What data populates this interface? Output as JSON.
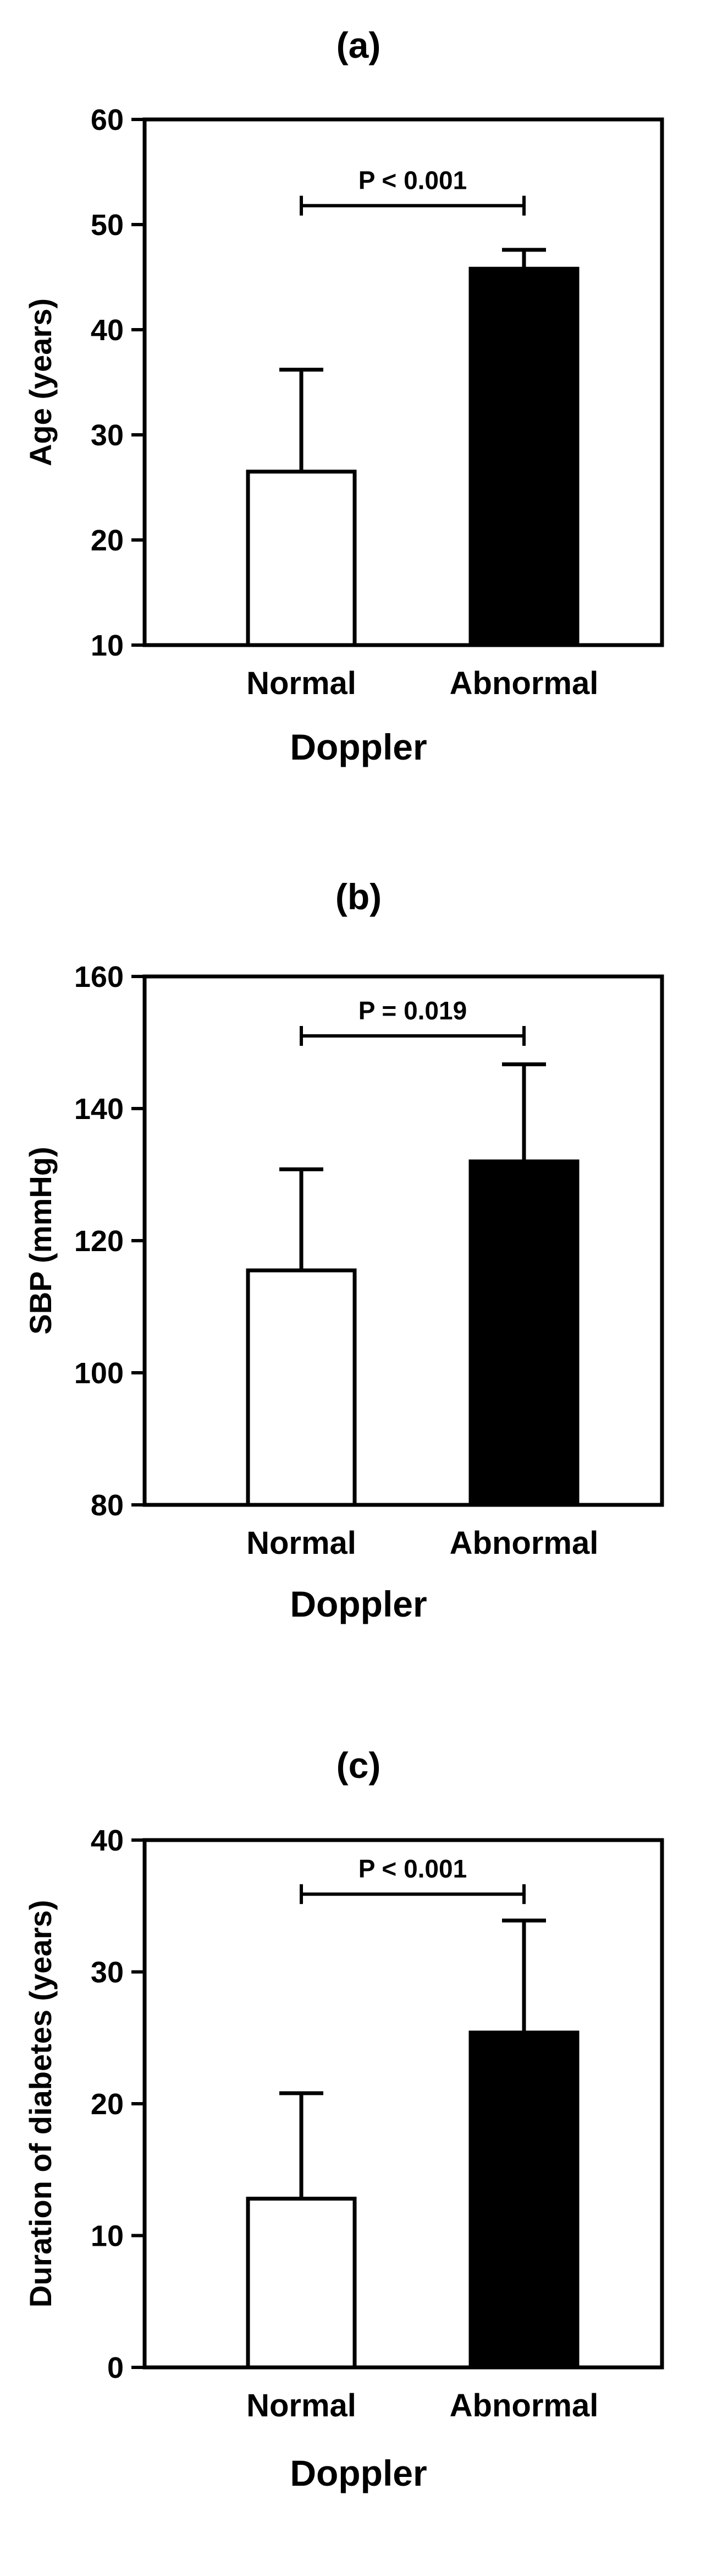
{
  "chart_data": [
    {
      "type": "bar",
      "panel_label": "(a)",
      "title": "(a)",
      "categories": [
        "Normal",
        "Abnormal"
      ],
      "values": [
        26.5,
        45.8
      ],
      "error_upper": [
        36.2,
        47.6
      ],
      "bar_colors": [
        "#ffffff",
        "#000000"
      ],
      "xlabel": "Doppler",
      "ylabel": "Age (years)",
      "ylim": [
        10,
        60
      ],
      "yticks": [
        10,
        20,
        30,
        40,
        50,
        60
      ],
      "ytick_labels": [
        "10",
        "20",
        "30",
        "40",
        "50",
        "60"
      ],
      "significance": {
        "label": "P < 0.001",
        "from": "Normal",
        "to": "Abnormal",
        "y": 51.8
      }
    },
    {
      "type": "bar",
      "panel_label": "(b)",
      "title": "(b)",
      "categories": [
        "Normal",
        "Abnormal"
      ],
      "values": [
        115.5,
        132
      ],
      "error_upper": [
        130.8,
        146.7
      ],
      "bar_colors": [
        "#ffffff",
        "#000000"
      ],
      "xlabel": "Doppler",
      "ylabel": "SBP (mmHg)",
      "ylim": [
        80,
        160
      ],
      "yticks": [
        80,
        100,
        120,
        140,
        160
      ],
      "ytick_labels": [
        "80",
        "100",
        "120",
        "140",
        "160"
      ],
      "significance": {
        "label": "P = 0.019",
        "from": "Normal",
        "to": "Abnormal",
        "y": 151
      }
    },
    {
      "type": "bar",
      "panel_label": "(c)",
      "title": "(c)",
      "categories": [
        "Normal",
        "Abnormal"
      ],
      "values": [
        12.8,
        25.4
      ],
      "error_upper": [
        20.8,
        33.9
      ],
      "bar_colors": [
        "#ffffff",
        "#000000"
      ],
      "xlabel": "Doppler",
      "ylabel": "Duration of diabetes (years)",
      "ylim": [
        0,
        40
      ],
      "yticks": [
        0,
        10,
        20,
        30,
        40
      ],
      "ytick_labels": [
        "0",
        "10",
        "20",
        "30",
        "40"
      ],
      "significance": {
        "label": "P < 0.001",
        "from": "Normal",
        "to": "Abnormal",
        "y": 35.9
      }
    }
  ]
}
